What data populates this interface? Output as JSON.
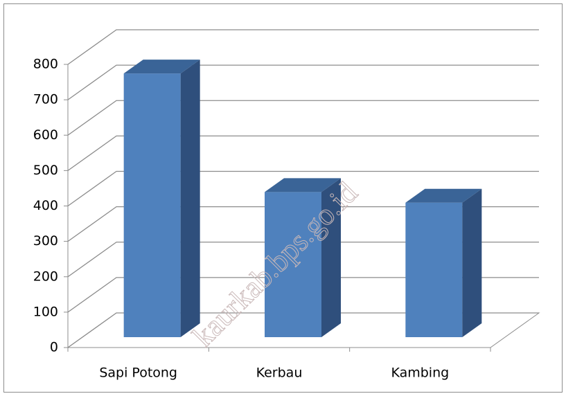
{
  "chart_data": {
    "type": "bar3d",
    "categories": [
      "Sapi Potong",
      "Kerbau",
      "Kambing"
    ],
    "values": [
      745,
      410,
      380
    ],
    "color": "#4f81bd",
    "ylim": [
      0,
      800
    ],
    "yticks": [
      0,
      100,
      200,
      300,
      400,
      500,
      600,
      700,
      800
    ],
    "grid": true,
    "watermark": "kaurkab.bps.go.id"
  }
}
